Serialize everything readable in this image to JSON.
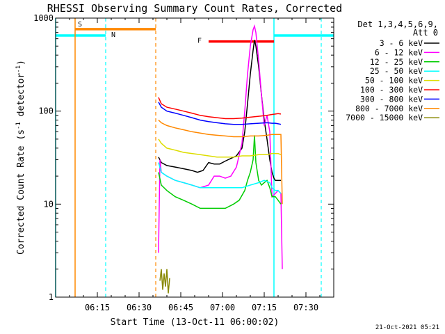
{
  "chart_data": {
    "type": "line",
    "title": "RHESSI Observing Summary Count Rates, Corrected",
    "xlabel": "Start Time (13-Oct-11 06:00:02)",
    "ylabel": "Corrected Count Rate (s⁻¹ detector⁻¹)",
    "ylabel_parts": {
      "main": "Corrected Count Rate (s",
      "sup1": "-1",
      "mid": " detector",
      "sup2": "-1",
      "end": ")"
    },
    "xlim_minutes": [
      0,
      100
    ],
    "ylim": [
      1,
      1000
    ],
    "yscale": "log",
    "x_ticks": [
      {
        "minute": 15,
        "label": "06:15"
      },
      {
        "minute": 30,
        "label": "06:30"
      },
      {
        "minute": 45,
        "label": "06:45"
      },
      {
        "minute": 60,
        "label": "07:00"
      },
      {
        "minute": 75,
        "label": "07:15"
      },
      {
        "minute": 90,
        "label": "07:30"
      }
    ],
    "y_ticks": [
      {
        "value": 1,
        "label": "1"
      },
      {
        "value": 10,
        "label": "10"
      },
      {
        "value": 100,
        "label": "100"
      },
      {
        "value": 1000,
        "label": "1000"
      }
    ],
    "legend": {
      "placement": "right",
      "header": [
        "Det 1,3,4,5,6,9,",
        "Att 0"
      ]
    },
    "series": [
      {
        "name": "3 - 6 keV",
        "color": "#000000",
        "x": [
          37,
          38,
          40,
          43,
          46,
          49,
          51,
          53,
          55,
          57,
          59,
          61,
          63,
          65,
          67,
          68,
          69,
          70,
          71,
          71.5,
          72,
          73,
          74,
          75,
          76,
          77,
          77.8,
          78.5,
          79,
          80,
          81
        ],
        "y": [
          32,
          28,
          26,
          25,
          24,
          23,
          22,
          23,
          28,
          27,
          27,
          29,
          31,
          33,
          40,
          60,
          120,
          250,
          450,
          580,
          500,
          300,
          150,
          80,
          50,
          30,
          22,
          19,
          18,
          18,
          18
        ]
      },
      {
        "name": "6 - 12 keV",
        "color": "#ff00ff",
        "x": [
          37,
          37.5,
          38,
          40,
          43,
          46,
          49,
          52,
          55,
          57,
          59,
          61,
          63,
          65,
          67,
          68,
          69,
          70,
          71,
          71.5,
          72,
          73,
          74,
          75,
          76,
          77,
          77.8,
          79,
          80,
          81,
          81.5
        ],
        "y": [
          3,
          30,
          22,
          20,
          18,
          17,
          16,
          15,
          16,
          20,
          20,
          19,
          20,
          25,
          45,
          100,
          250,
          500,
          750,
          820,
          700,
          350,
          150,
          70,
          90,
          60,
          12,
          13,
          14,
          13,
          2
        ]
      },
      {
        "name": "12 - 25 keV",
        "color": "#00cc00",
        "x": [
          37,
          38,
          40,
          43,
          46,
          49,
          52,
          55,
          58,
          61,
          64,
          66,
          68,
          69,
          70,
          71,
          71.5,
          72,
          73,
          74,
          75,
          76,
          77,
          77.8,
          79,
          80,
          81
        ],
        "y": [
          22,
          16,
          14,
          12,
          11,
          10,
          9,
          9,
          9,
          9,
          10,
          11,
          14,
          18,
          22,
          30,
          55,
          28,
          18,
          16,
          17,
          18,
          15,
          12,
          12,
          11,
          10
        ]
      },
      {
        "name": "25 - 50 keV",
        "color": "#00ffff",
        "x": [
          37,
          38,
          40,
          43,
          46,
          49,
          52,
          55,
          58,
          61,
          64,
          67,
          70,
          73,
          75,
          77,
          77.8,
          79,
          80,
          81
        ],
        "y": [
          28,
          22,
          20,
          18,
          17,
          16,
          15,
          15,
          15,
          15,
          15,
          15,
          16,
          17,
          18,
          17,
          15,
          14,
          14,
          13
        ]
      },
      {
        "name": "50 - 100 keV",
        "color": "#dddd00",
        "x": [
          37,
          38,
          40,
          43,
          46,
          49,
          52,
          55,
          58,
          61,
          64,
          67,
          70,
          73,
          76,
          77.8,
          79,
          80,
          81
        ],
        "y": [
          50,
          45,
          40,
          38,
          36,
          35,
          34,
          33,
          32,
          32,
          32,
          33,
          33,
          34,
          34,
          35,
          35,
          35,
          34
        ]
      },
      {
        "name": "100 - 300 keV",
        "color": "#ff0000",
        "x": [
          37,
          38,
          40,
          43,
          46,
          49,
          52,
          55,
          58,
          61,
          64,
          67,
          70,
          73,
          76,
          77.8,
          79,
          80,
          81
        ],
        "y": [
          140,
          120,
          110,
          105,
          100,
          95,
          90,
          87,
          85,
          83,
          83,
          84,
          86,
          88,
          90,
          92,
          93,
          94,
          93
        ]
      },
      {
        "name": "300 - 800 keV",
        "color": "#0000ff",
        "x": [
          37,
          38,
          40,
          43,
          46,
          49,
          52,
          55,
          58,
          61,
          64,
          67,
          70,
          73,
          76,
          77.8,
          79,
          80,
          81
        ],
        "y": [
          125,
          110,
          100,
          95,
          90,
          85,
          80,
          77,
          75,
          73,
          72,
          72,
          73,
          74,
          75,
          74,
          74,
          73,
          72
        ]
      },
      {
        "name": "800 - 7000 keV",
        "color": "#ff8800",
        "x": [
          37,
          38,
          40,
          43,
          46,
          49,
          52,
          55,
          58,
          61,
          64,
          67,
          70,
          73,
          76,
          77.8,
          79,
          80,
          81,
          81.5
        ],
        "y": [
          80,
          75,
          70,
          66,
          63,
          60,
          58,
          56,
          55,
          54,
          53,
          53,
          54,
          54,
          55,
          56,
          56,
          56,
          56,
          10
        ]
      },
      {
        "name": "7000 - 15000 keV",
        "color": "#888800",
        "x": [
          37.5,
          38,
          38.5,
          39,
          39.5,
          40,
          40.5,
          41
        ],
        "y": [
          1.5,
          2,
          1.2,
          1.8,
          1.3,
          2,
          1.1,
          1.6
        ]
      }
    ],
    "intervals": [
      {
        "label": "N",
        "color": "#00ffff",
        "y": 650,
        "segments": [
          [
            0,
            18
          ],
          [
            78.5,
            100
          ]
        ],
        "dashed_lines": [
          18,
          95.5
        ],
        "solid_lines": [
          0,
          78.5
        ]
      },
      {
        "label": "S",
        "color": "#ff8800",
        "y": 760,
        "segments": [
          [
            7,
            36
          ]
        ],
        "solid_lines": [
          7
        ],
        "dashed_lines": [
          36
        ]
      },
      {
        "label": "F",
        "color": "#ff0000",
        "y": 560,
        "segments": [
          [
            55,
            78.5
          ]
        ]
      }
    ],
    "interval_labels": [
      {
        "text": "S",
        "color": "#ff8800"
      },
      {
        "text": "N",
        "color": "#00ffff"
      },
      {
        "text": "F",
        "color": "#ff0000"
      }
    ],
    "footer_timestamp": "21-Oct-2021 05:21"
  }
}
